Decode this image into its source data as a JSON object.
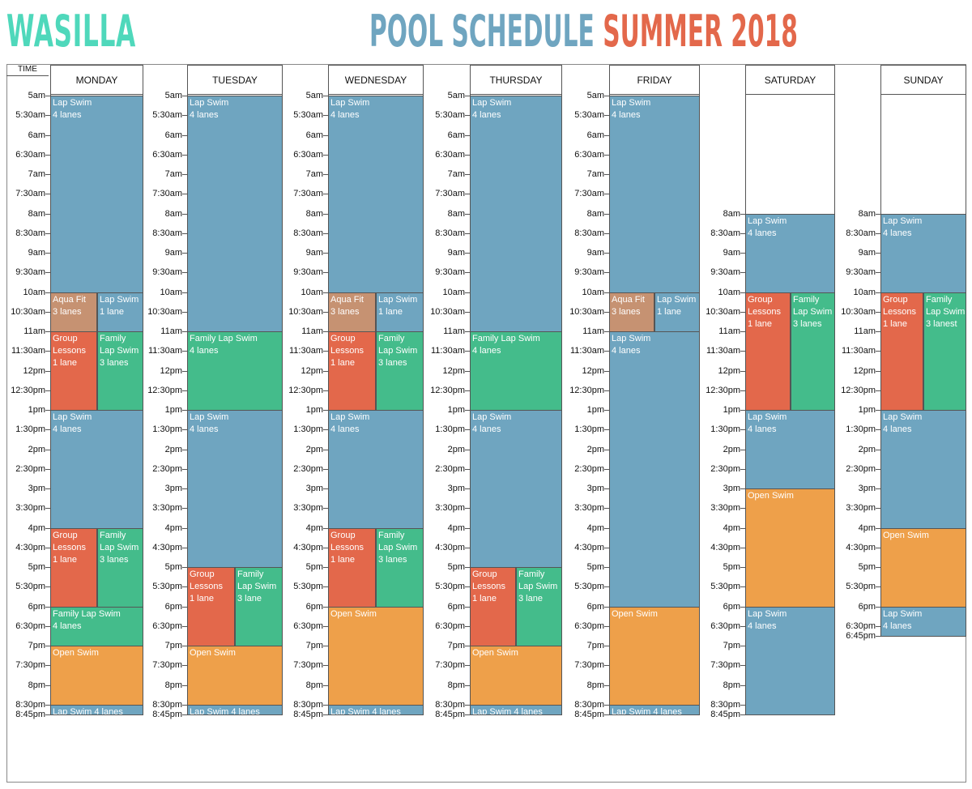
{
  "brand": "WASILLA",
  "title": {
    "part1": "POOL SCHEDULE",
    "part2": "SUMMER 2018"
  },
  "time_header": "TIME",
  "colors": {
    "lap": "#6fa5c0",
    "family": "#44bc8b",
    "group": "#e3684b",
    "aqua": "#c69272",
    "open": "#eea04a",
    "brand": "#4fd8bb"
  },
  "days": [
    {
      "name": "MONDAY",
      "start": "5am",
      "times": [
        "5am",
        "5:30am",
        "6am",
        "6:30am",
        "7am",
        "7:30am",
        "8am",
        "8:30am",
        "9am",
        "9:30am",
        "10am",
        "10:30am",
        "11am",
        "11:30am",
        "12pm",
        "12:30pm",
        "1pm",
        "1:30pm",
        "2pm",
        "2:30pm",
        "3pm",
        "3:30pm",
        "4pm",
        "4:30pm",
        "5pm",
        "5:30pm",
        "6pm",
        "6:30pm",
        "7pm",
        "7:30pm",
        "8pm",
        "8:30pm",
        "8:45pm"
      ],
      "blocks": [
        {
          "type": "lap",
          "start": "5:00",
          "end": "10:00",
          "part": "full",
          "lines": [
            "Lap Swim",
            "4 lanes"
          ]
        },
        {
          "type": "aqua",
          "start": "10:00",
          "end": "11:00",
          "part": "left",
          "lines": [
            "Aqua Fit",
            "3 lanes"
          ]
        },
        {
          "type": "lap",
          "start": "10:00",
          "end": "11:00",
          "part": "right",
          "lines": [
            "Lap Swim",
            "1 lane"
          ]
        },
        {
          "type": "group",
          "start": "11:00",
          "end": "13:00",
          "part": "left",
          "lines": [
            "Group",
            "Lessons",
            "1 lane"
          ]
        },
        {
          "type": "family",
          "start": "11:00",
          "end": "13:00",
          "part": "right",
          "lines": [
            "Family",
            "Lap Swim",
            "3 lanes"
          ]
        },
        {
          "type": "lap",
          "start": "13:00",
          "end": "16:00",
          "part": "full",
          "lines": [
            "Lap Swim",
            "4 lanes"
          ]
        },
        {
          "type": "group",
          "start": "16:00",
          "end": "18:00",
          "part": "left",
          "lines": [
            "Group",
            "Lessons",
            "1 lane"
          ]
        },
        {
          "type": "family",
          "start": "16:00",
          "end": "18:00",
          "part": "right",
          "lines": [
            "Family",
            "Lap Swim",
            "3 lanes"
          ]
        },
        {
          "type": "family",
          "start": "18:00",
          "end": "19:00",
          "part": "full",
          "lines": [
            "Family Lap Swim",
            "4 lanes"
          ]
        },
        {
          "type": "open",
          "start": "19:00",
          "end": "20:30",
          "part": "full",
          "lines": [
            "Open Swim"
          ]
        },
        {
          "type": "lap",
          "start": "20:30",
          "end": "20:45",
          "part": "full",
          "lines": [
            "Lap Swim 4 lanes"
          ]
        }
      ]
    },
    {
      "name": "TUESDAY",
      "start": "5am",
      "times": [
        "5am",
        "5:30am",
        "6am",
        "6:30am",
        "7am",
        "7:30am",
        "8am",
        "8:30am",
        "9am",
        "9:30am",
        "10am",
        "10:30am",
        "11am",
        "11:30am",
        "12pm",
        "12:30pm",
        "1pm",
        "1:30pm",
        "2pm",
        "2:30pm",
        "3pm",
        "3:30pm",
        "4pm",
        "4:30pm",
        "5pm",
        "5:30pm",
        "6pm",
        "6:30pm",
        "7pm",
        "7:30pm",
        "8pm",
        "8:30pm",
        "8:45pm"
      ],
      "blocks": [
        {
          "type": "lap",
          "start": "5:00",
          "end": "11:00",
          "part": "full",
          "lines": [
            "Lap Swim",
            "4 lanes"
          ]
        },
        {
          "type": "family",
          "start": "11:00",
          "end": "13:00",
          "part": "full",
          "lines": [
            "Family Lap Swim",
            "4 lanes"
          ]
        },
        {
          "type": "lap",
          "start": "13:00",
          "end": "17:00",
          "part": "full",
          "lines": [
            "Lap Swim",
            "4 lanes"
          ]
        },
        {
          "type": "group",
          "start": "17:00",
          "end": "19:00",
          "part": "left",
          "lines": [
            "Group",
            "Lessons",
            "1 lane"
          ]
        },
        {
          "type": "family",
          "start": "17:00",
          "end": "19:00",
          "part": "right",
          "lines": [
            "Family",
            "Lap Swim",
            "3 lane"
          ]
        },
        {
          "type": "open",
          "start": "19:00",
          "end": "20:30",
          "part": "full",
          "lines": [
            "Open Swim"
          ]
        },
        {
          "type": "lap",
          "start": "20:30",
          "end": "20:45",
          "part": "full",
          "lines": [
            "Lap Swim 4 lanes"
          ]
        }
      ]
    },
    {
      "name": "WEDNESDAY",
      "start": "5am",
      "times": [
        "5am",
        "5:30am",
        "6am",
        "6:30am",
        "7am",
        "7:30am",
        "8am",
        "8:30am",
        "9am",
        "9:30am",
        "10am",
        "10:30am",
        "11am",
        "11:30am",
        "12pm",
        "12:30pm",
        "1pm",
        "1:30pm",
        "2pm",
        "2:30pm",
        "3pm",
        "3:30pm",
        "4pm",
        "4:30pm",
        "5pm",
        "5:30pm",
        "6pm",
        "6:30pm",
        "7pm",
        "7:30pm",
        "8pm",
        "8:30pm",
        "8:45pm"
      ],
      "blocks": [
        {
          "type": "lap",
          "start": "5:00",
          "end": "10:00",
          "part": "full",
          "lines": [
            "Lap Swim",
            "4 lanes"
          ]
        },
        {
          "type": "aqua",
          "start": "10:00",
          "end": "11:00",
          "part": "left",
          "lines": [
            "Aqua Fit",
            "3 lanes"
          ]
        },
        {
          "type": "lap",
          "start": "10:00",
          "end": "11:00",
          "part": "right",
          "lines": [
            "Lap Swim",
            "1 lane"
          ]
        },
        {
          "type": "group",
          "start": "11:00",
          "end": "13:00",
          "part": "left",
          "lines": [
            "Group",
            "Lessons",
            "1 lane"
          ]
        },
        {
          "type": "family",
          "start": "11:00",
          "end": "13:00",
          "part": "right",
          "lines": [
            "Family",
            "Lap Swim",
            "3 lanes"
          ]
        },
        {
          "type": "lap",
          "start": "13:00",
          "end": "16:00",
          "part": "full",
          "lines": [
            "Lap Swim",
            "4 lanes"
          ]
        },
        {
          "type": "group",
          "start": "16:00",
          "end": "18:00",
          "part": "left",
          "lines": [
            "Group",
            "Lessons",
            "1 lane"
          ]
        },
        {
          "type": "family",
          "start": "16:00",
          "end": "18:00",
          "part": "right",
          "lines": [
            "Family",
            "Lap Swim",
            "3 lanes"
          ]
        },
        {
          "type": "open",
          "start": "18:00",
          "end": "20:30",
          "part": "full",
          "lines": [
            "Open Swim"
          ]
        },
        {
          "type": "lap",
          "start": "20:30",
          "end": "20:45",
          "part": "full",
          "lines": [
            "Lap Swim 4 lanes"
          ]
        }
      ]
    },
    {
      "name": "THURSDAY",
      "start": "5am",
      "times": [
        "5am",
        "5:30am",
        "6am",
        "6:30am",
        "7am",
        "7:30am",
        "8am",
        "8:30am",
        "9am",
        "9:30am",
        "10am",
        "10:30am",
        "11am",
        "11:30am",
        "12pm",
        "12:30pm",
        "1pm",
        "1:30pm",
        "2pm",
        "2:30pm",
        "3pm",
        "3:30pm",
        "4pm",
        "4:30pm",
        "5pm",
        "5:30pm",
        "6pm",
        "6:30pm",
        "7pm",
        "7:30pm",
        "8pm",
        "8:30pm",
        "8:45pm"
      ],
      "blocks": [
        {
          "type": "lap",
          "start": "5:00",
          "end": "11:00",
          "part": "full",
          "lines": [
            "Lap Swim",
            "4 lanes"
          ]
        },
        {
          "type": "family",
          "start": "11:00",
          "end": "13:00",
          "part": "full",
          "lines": [
            "Family Lap Swim",
            "4 lanes"
          ]
        },
        {
          "type": "lap",
          "start": "13:00",
          "end": "17:00",
          "part": "full",
          "lines": [
            "Lap Swim",
            "4 lanes"
          ]
        },
        {
          "type": "group",
          "start": "17:00",
          "end": "19:00",
          "part": "left",
          "lines": [
            "Group",
            "Lessons",
            "1 lane"
          ]
        },
        {
          "type": "family",
          "start": "17:00",
          "end": "19:00",
          "part": "right",
          "lines": [
            "Family",
            "Lap Swim",
            "3 lane"
          ]
        },
        {
          "type": "open",
          "start": "19:00",
          "end": "20:30",
          "part": "full",
          "lines": [
            "Open Swim"
          ]
        },
        {
          "type": "lap",
          "start": "20:30",
          "end": "20:45",
          "part": "full",
          "lines": [
            "Lap Swim 4 lanes"
          ]
        }
      ]
    },
    {
      "name": "FRIDAY",
      "start": "5am",
      "times": [
        "5am",
        "5:30am",
        "6am",
        "6:30am",
        "7am",
        "7:30am",
        "8am",
        "8:30am",
        "9am",
        "9:30am",
        "10am",
        "10:30am",
        "11am",
        "11:30am",
        "12pm",
        "12:30pm",
        "1pm",
        "1:30pm",
        "2pm",
        "2:30pm",
        "3pm",
        "3:30pm",
        "4pm",
        "4:30pm",
        "5pm",
        "5:30pm",
        "6pm",
        "6:30pm",
        "7pm",
        "7:30pm",
        "8pm",
        "8:30pm",
        "8:45pm"
      ],
      "blocks": [
        {
          "type": "lap",
          "start": "5:00",
          "end": "10:00",
          "part": "full",
          "lines": [
            "Lap Swim",
            "4 lanes"
          ]
        },
        {
          "type": "aqua",
          "start": "10:00",
          "end": "11:00",
          "part": "left",
          "lines": [
            "Aqua Fit",
            "3 lanes"
          ]
        },
        {
          "type": "lap",
          "start": "10:00",
          "end": "11:00",
          "part": "right",
          "lines": [
            "Lap Swim",
            "1 lane"
          ]
        },
        {
          "type": "lap",
          "start": "11:00",
          "end": "18:00",
          "part": "full",
          "lines": [
            "Lap Swim",
            "4 lanes"
          ]
        },
        {
          "type": "open",
          "start": "18:00",
          "end": "20:30",
          "part": "full",
          "lines": [
            "Open Swim"
          ]
        },
        {
          "type": "lap",
          "start": "20:30",
          "end": "20:45",
          "part": "full",
          "lines": [
            "Lap Swim 4 lanes"
          ]
        }
      ]
    },
    {
      "name": "SATURDAY",
      "start": "8am",
      "times": [
        "8am",
        "8:30am",
        "9am",
        "9:30am",
        "10am",
        "10:30am",
        "11am",
        "11:30am",
        "12pm",
        "12:30pm",
        "1pm",
        "1:30pm",
        "2pm",
        "2:30pm",
        "3pm",
        "3:30pm",
        "4pm",
        "4:30pm",
        "5pm",
        "5:30pm",
        "6pm",
        "6:30pm",
        "7pm",
        "7:30pm",
        "8pm",
        "8:30pm",
        "8:45pm"
      ],
      "blocks": [
        {
          "type": "lap",
          "start": "8:00",
          "end": "10:00",
          "part": "full",
          "lines": [
            "Lap Swim",
            "4 lanes"
          ]
        },
        {
          "type": "group",
          "start": "10:00",
          "end": "13:00",
          "part": "left",
          "lines": [
            "Group",
            "Lessons",
            "1 lane"
          ]
        },
        {
          "type": "family",
          "start": "10:00",
          "end": "13:00",
          "part": "right",
          "lines": [
            "Family",
            "Lap Swim",
            "3 lanes"
          ]
        },
        {
          "type": "lap",
          "start": "13:00",
          "end": "15:00",
          "part": "full",
          "lines": [
            "Lap Swim",
            "4 lanes"
          ]
        },
        {
          "type": "open",
          "start": "15:00",
          "end": "18:00",
          "part": "full",
          "lines": [
            "Open Swim"
          ]
        },
        {
          "type": "lap",
          "start": "18:00",
          "end": "20:45",
          "part": "full",
          "lines": [
            "Lap Swim",
            "4 lanes"
          ]
        }
      ]
    },
    {
      "name": "SUNDAY",
      "start": "8am",
      "times": [
        "8am",
        "8:30am",
        "9am",
        "9:30am",
        "10am",
        "10:30am",
        "11am",
        "11:30am",
        "12pm",
        "12:30pm",
        "1pm",
        "1:30pm",
        "2pm",
        "2:30pm",
        "3pm",
        "3:30pm",
        "4pm",
        "4:30pm",
        "5pm",
        "5:30pm",
        "6pm",
        "6:30pm",
        "6:45pm"
      ],
      "blocks": [
        {
          "type": "lap",
          "start": "8:00",
          "end": "10:00",
          "part": "full",
          "lines": [
            "Lap Swim",
            "4 lanes"
          ]
        },
        {
          "type": "group",
          "start": "10:00",
          "end": "13:00",
          "part": "left",
          "lines": [
            "Group",
            "Lessons",
            "1 lane"
          ]
        },
        {
          "type": "family",
          "start": "10:00",
          "end": "13:00",
          "part": "right",
          "lines": [
            "Family",
            "Lap Swim",
            "3 lanest"
          ]
        },
        {
          "type": "lap",
          "start": "13:00",
          "end": "16:00",
          "part": "full",
          "lines": [
            "Lap Swim",
            "4 lanes"
          ]
        },
        {
          "type": "open",
          "start": "16:00",
          "end": "18:00",
          "part": "full",
          "lines": [
            "Open Swim"
          ]
        },
        {
          "type": "lap",
          "start": "18:00",
          "end": "18:45",
          "part": "full",
          "lines": [
            "Lap Swim",
            "4 lanes"
          ]
        }
      ]
    }
  ]
}
